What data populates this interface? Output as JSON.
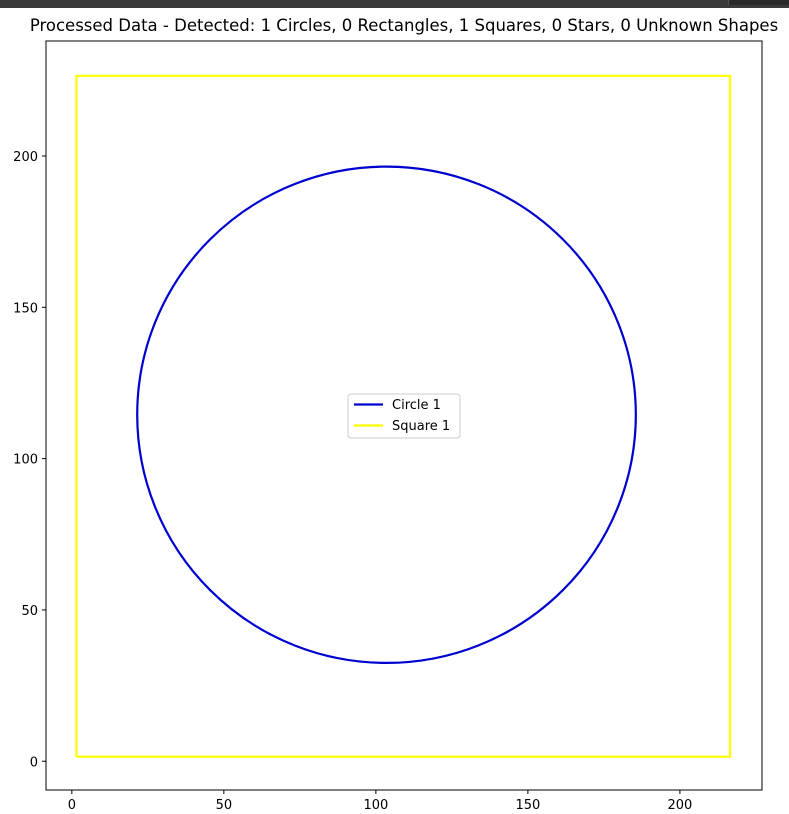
{
  "chart_data": {
    "type": "line",
    "title": "Processed Data - Detected: 1 Circles, 0 Rectangles, 1 Squares, 0 Stars, 0 Unknown Shapes",
    "xlabel": "",
    "ylabel": "",
    "xlim": [
      -8.5,
      227
    ],
    "ylim": [
      -9.5,
      238
    ],
    "xticks": [
      0,
      50,
      100,
      150,
      200
    ],
    "yticks": [
      0,
      50,
      100,
      150,
      200
    ],
    "grid": false,
    "legend_position": "center",
    "series": [
      {
        "name": "Circle 1",
        "shape": "circle",
        "color": "#0000d0",
        "center": [
          103.5,
          114.5
        ],
        "radius": 82
      },
      {
        "name": "Square 1",
        "shape": "square",
        "color": "#ffff00",
        "x": [
          1.5,
          216.5,
          216.5,
          1.5,
          1.5
        ],
        "y": [
          1.5,
          1.5,
          226.5,
          226.5,
          1.5
        ]
      }
    ]
  }
}
